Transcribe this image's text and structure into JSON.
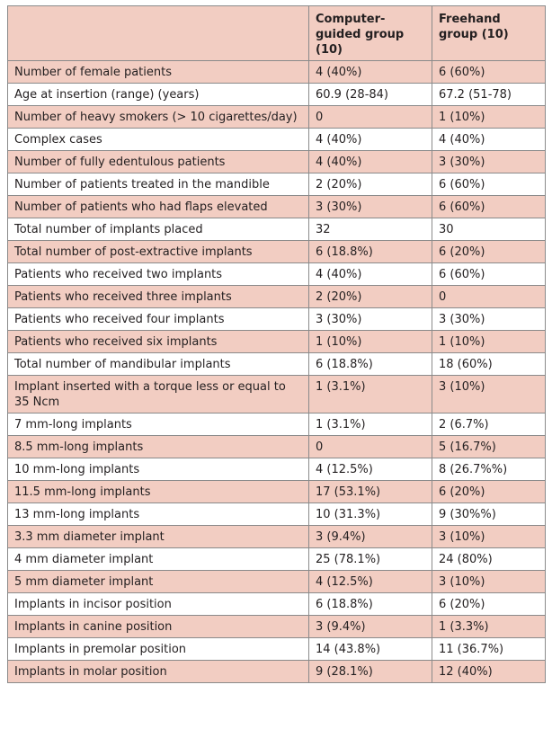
{
  "table": {
    "header": [
      "",
      "Computer-guided group (10)",
      "Freehand group (10)"
    ],
    "rows": [
      [
        "Number of female patients",
        "4 (40%)",
        "6 (60%)"
      ],
      [
        "Age at insertion (range) (years)",
        "60.9 (28-84)",
        "67.2 (51-78)"
      ],
      [
        "Number of heavy smokers (> 10 cigarettes/day)",
        "0",
        "1 (10%)"
      ],
      [
        "Complex cases",
        "4 (40%)",
        "4 (40%)"
      ],
      [
        "Number of fully edentulous patients",
        "4 (40%)",
        "3 (30%)"
      ],
      [
        "Number of patients treated in the mandible",
        "2 (20%)",
        "6 (60%)"
      ],
      [
        "Number of patients who had flaps elevated",
        "3 (30%)",
        "6 (60%)"
      ],
      [
        "Total number of implants placed",
        "32",
        "30"
      ],
      [
        "Total number of post-extractive implants",
        "6 (18.8%)",
        "6 (20%)"
      ],
      [
        "Patients who received two implants",
        "4 (40%)",
        "6 (60%)"
      ],
      [
        "Patients who received three implants",
        "2 (20%)",
        "0"
      ],
      [
        "Patients who received four implants",
        "3 (30%)",
        "3 (30%)"
      ],
      [
        "Patients who received six implants",
        "1 (10%)",
        "1 (10%)"
      ],
      [
        "Total number of mandibular implants",
        "6 (18.8%)",
        "18 (60%)"
      ],
      [
        "Implant inserted with a torque less or equal to 35 Ncm",
        "1 (3.1%)",
        "3 (10%)"
      ],
      [
        "7 mm-long implants",
        "1 (3.1%)",
        "2 (6.7%)"
      ],
      [
        "8.5 mm-long implants",
        "0",
        "5 (16.7%)"
      ],
      [
        "10 mm-long implants",
        "4 (12.5%)",
        "8 (26.7%%)"
      ],
      [
        "11.5 mm-long implants",
        "17 (53.1%)",
        "6 (20%)"
      ],
      [
        "13 mm-long implants",
        "10 (31.3%)",
        "9 (30%%)"
      ],
      [
        "3.3 mm diameter implant",
        "3 (9.4%)",
        "3 (10%)"
      ],
      [
        "4 mm diameter implant",
        "25 (78.1%)",
        "24 (80%)"
      ],
      [
        "5 mm diameter implant",
        "4 (12.5%)",
        "3 (10%)"
      ],
      [
        "Implants in incisor position",
        "6 (18.8%)",
        "6 (20%)"
      ],
      [
        "Implants in canine position",
        "3 (9.4%)",
        "1 (3.3%)"
      ],
      [
        "Implants in premolar position",
        "14 (43.8%)",
        "11 (36.7%)"
      ],
      [
        "Implants in molar position",
        "9 (28.1%)",
        "12 (40%)"
      ]
    ]
  },
  "colors": {
    "band": "#f2cdc2",
    "border": "#8a8a8a",
    "text": "#231f20"
  }
}
